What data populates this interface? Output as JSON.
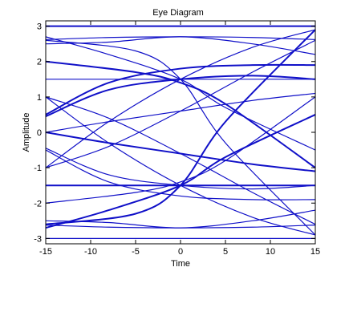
{
  "chart_data": {
    "type": "line",
    "title": "Eye Diagram",
    "xlabel": "Time",
    "ylabel": "Amplitude",
    "xlim": [
      -15,
      15
    ],
    "ylim": [
      -3.15,
      3.15
    ],
    "xticks": [
      -15,
      -10,
      -5,
      0,
      5,
      10,
      15
    ],
    "yticks": [
      3,
      2,
      1,
      0,
      -1,
      -2,
      -3
    ],
    "grid": false,
    "trace_color": "#1010c8",
    "series": [
      {
        "x": [
          -15,
          0,
          15
        ],
        "y": [
          3,
          3,
          3
        ]
      },
      {
        "x": [
          -15,
          0,
          15
        ],
        "y": [
          -3,
          -3,
          -3
        ]
      },
      {
        "x": [
          -15,
          0,
          15
        ],
        "y": [
          1.5,
          1.5,
          1.5
        ]
      },
      {
        "x": [
          -15,
          0,
          15
        ],
        "y": [
          -1.5,
          -1.5,
          -1.5
        ]
      },
      {
        "x": [
          -15,
          -8,
          0,
          8,
          15
        ],
        "y": [
          2.62,
          2.68,
          2.7,
          2.68,
          2.62
        ]
      },
      {
        "x": [
          -15,
          -8,
          0,
          8,
          15
        ],
        "y": [
          -2.62,
          -2.68,
          -2.7,
          -2.68,
          -2.62
        ]
      },
      {
        "x": [
          -15,
          -8,
          0,
          8,
          15
        ],
        "y": [
          0.5,
          1.4,
          1.8,
          1.9,
          1.9
        ]
      },
      {
        "x": [
          -15,
          -8,
          0,
          8,
          15
        ],
        "y": [
          -0.5,
          -1.4,
          -1.8,
          -1.9,
          -1.9
        ]
      },
      {
        "x": [
          -15,
          -8,
          0,
          8,
          15
        ],
        "y": [
          0,
          0.3,
          0.6,
          0.9,
          1.1
        ]
      },
      {
        "x": [
          -15,
          -8,
          0,
          8,
          15
        ],
        "y": [
          0,
          -0.3,
          -0.6,
          -0.9,
          -1.1
        ]
      },
      {
        "x": [
          -15,
          -8,
          0,
          8,
          15
        ],
        "y": [
          -1,
          -0.4,
          0.6,
          1.7,
          2.6
        ]
      },
      {
        "x": [
          -15,
          -8,
          0,
          8,
          15
        ],
        "y": [
          1,
          0.4,
          -0.6,
          -1.7,
          -2.6
        ]
      },
      {
        "x": [
          -15,
          -5,
          0,
          5,
          15
        ],
        "y": [
          2,
          1.7,
          1.4,
          0.8,
          -1
        ]
      },
      {
        "x": [
          -15,
          -5,
          0,
          5,
          15
        ],
        "y": [
          -2,
          -1.7,
          -1.4,
          -0.8,
          1
        ]
      },
      {
        "x": [
          -15,
          -5,
          0,
          5,
          15
        ],
        "y": [
          2.6,
          2.3,
          1.5,
          -0.3,
          -2.9
        ]
      },
      {
        "x": [
          -15,
          -5,
          0,
          5,
          15
        ],
        "y": [
          -2.6,
          -2.3,
          -1.5,
          0.3,
          2.9
        ]
      },
      {
        "x": [
          -15,
          -8,
          0,
          8,
          15
        ],
        "y": [
          -1,
          0.3,
          1.5,
          2.4,
          2.9
        ]
      },
      {
        "x": [
          -15,
          -8,
          0,
          8,
          15
        ],
        "y": [
          1,
          -0.3,
          -1.5,
          -2.4,
          -2.9
        ]
      },
      {
        "x": [
          -15,
          -8,
          0,
          8,
          15
        ],
        "y": [
          0.45,
          1.2,
          1.5,
          1.6,
          1.5
        ]
      },
      {
        "x": [
          -15,
          -8,
          0,
          8,
          15
        ],
        "y": [
          -0.45,
          -1.2,
          -1.5,
          -1.6,
          -1.5
        ]
      },
      {
        "x": [
          -15,
          -8,
          0,
          5,
          15
        ],
        "y": [
          2.7,
          2.2,
          1.5,
          0.7,
          -0.5
        ]
      },
      {
        "x": [
          -15,
          -8,
          0,
          5,
          15
        ],
        "y": [
          -2.7,
          -2.2,
          -1.5,
          -0.7,
          0.5
        ]
      },
      {
        "x": [
          -15,
          -8,
          0,
          8,
          15
        ],
        "y": [
          2.5,
          2.55,
          2.7,
          2.5,
          2.2
        ]
      },
      {
        "x": [
          -15,
          -8,
          0,
          8,
          15
        ],
        "y": [
          -2.5,
          -2.55,
          -2.7,
          -2.5,
          -2.2
        ]
      }
    ]
  }
}
